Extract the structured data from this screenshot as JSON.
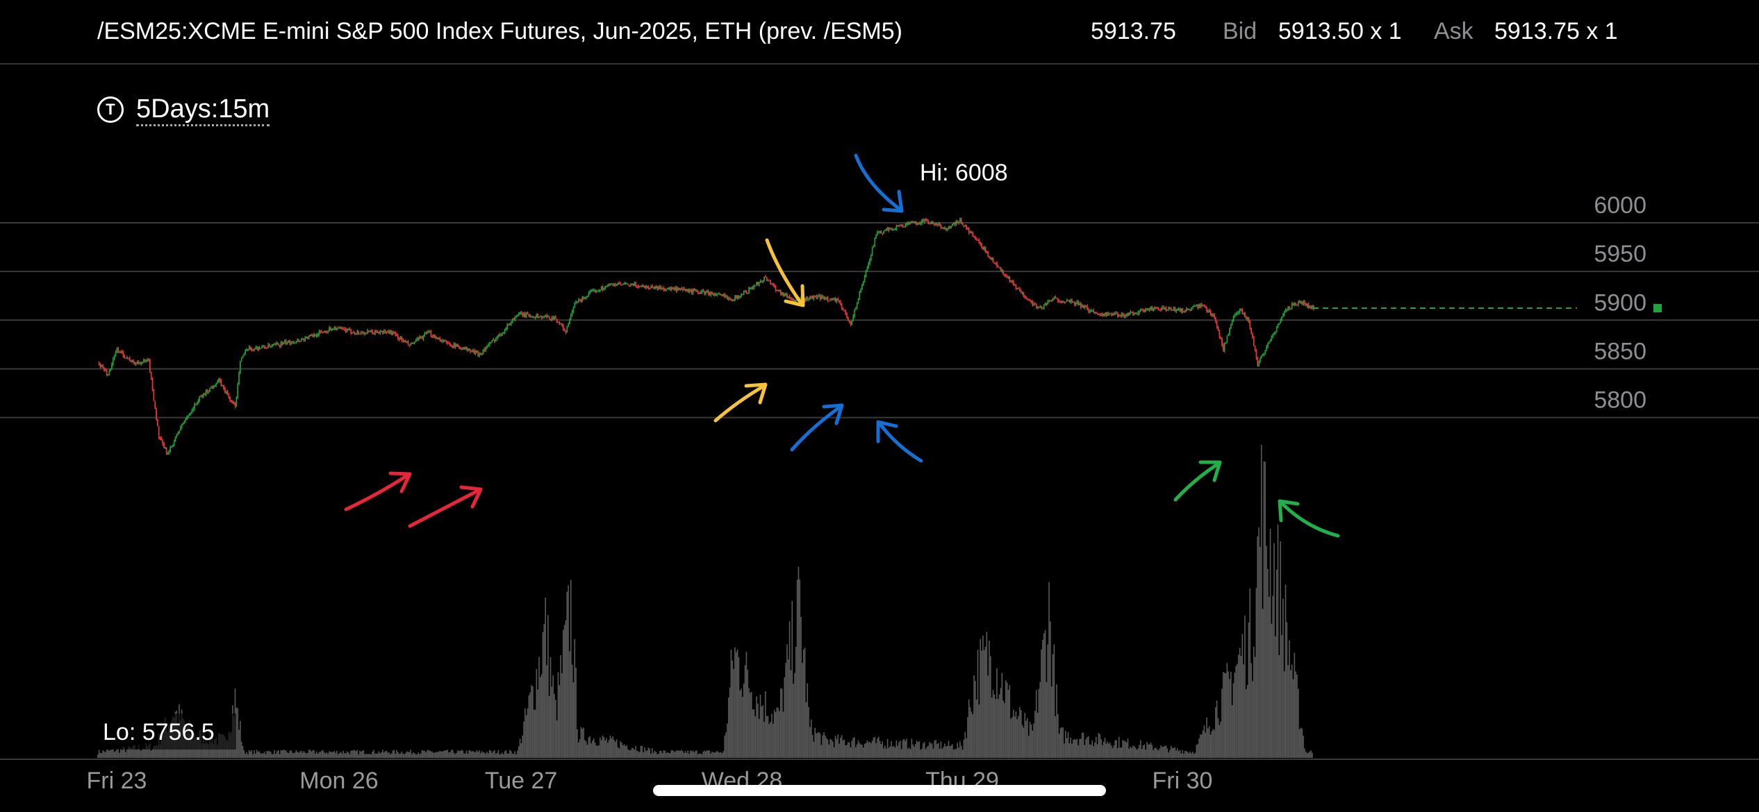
{
  "header": {
    "symbol": "/ESM25:XCME E-mini S&P 500 Index Futures, Jun-2025, ETH (prev. /ESM5)",
    "last": "5913.75",
    "bid_label": "Bid",
    "bid": "5913.50 x 1",
    "ask_label": "Ask",
    "ask": "5913.75 x 1"
  },
  "timeframe": {
    "label": "5Days:15m",
    "icon": "t-circle-icon"
  },
  "colors": {
    "up": "#1fa63a",
    "down": "#f0393b",
    "volume": "#5a5a5a",
    "grid": "#3a3a3a",
    "last_price_line": "#1fa63a"
  },
  "chart_data": {
    "type": "candlestick",
    "ylim": [
      5725,
      6030
    ],
    "yticks": [
      {
        "value": 6000,
        "label": "6000"
      },
      {
        "value": 5950,
        "label": "5950"
      },
      {
        "value": 5900,
        "label": "5900"
      },
      {
        "value": 5850,
        "label": "5850"
      },
      {
        "value": 5800,
        "label": "5800"
      }
    ],
    "xticks": [
      "Fri 23",
      "Mon 26",
      "Tue 27",
      "Wed 28",
      "Thu 29",
      "Fri 30"
    ],
    "hi_label": "Hi: 6008",
    "lo_label": "Lo: 5756.5",
    "last_price": 5913.75,
    "price_path": [
      [
        0,
        5857
      ],
      [
        8,
        5844
      ],
      [
        15,
        5870
      ],
      [
        28,
        5856
      ],
      [
        40,
        5858
      ],
      [
        48,
        5780
      ],
      [
        55,
        5762
      ],
      [
        65,
        5790
      ],
      [
        80,
        5820
      ],
      [
        95,
        5838
      ],
      [
        108,
        5810
      ],
      [
        112,
        5860
      ],
      [
        118,
        5870
      ],
      [
        135,
        5873
      ],
      [
        160,
        5880
      ],
      [
        185,
        5892
      ],
      [
        205,
        5887
      ],
      [
        230,
        5888
      ],
      [
        245,
        5874
      ],
      [
        260,
        5887
      ],
      [
        275,
        5876
      ],
      [
        290,
        5870
      ],
      [
        300,
        5865
      ],
      [
        318,
        5888
      ],
      [
        330,
        5906
      ],
      [
        345,
        5904
      ],
      [
        360,
        5902
      ],
      [
        368,
        5888
      ],
      [
        375,
        5917
      ],
      [
        390,
        5930
      ],
      [
        405,
        5937
      ],
      [
        420,
        5936
      ],
      [
        450,
        5932
      ],
      [
        480,
        5928
      ],
      [
        500,
        5922
      ],
      [
        512,
        5931
      ],
      [
        525,
        5944
      ],
      [
        535,
        5930
      ],
      [
        548,
        5920
      ],
      [
        565,
        5924
      ],
      [
        582,
        5920
      ],
      [
        592,
        5896
      ],
      [
        602,
        5940
      ],
      [
        612,
        5988
      ],
      [
        628,
        5996
      ],
      [
        650,
        6002
      ],
      [
        668,
        5994
      ],
      [
        678,
        6002
      ],
      [
        695,
        5976
      ],
      [
        712,
        5948
      ],
      [
        725,
        5929
      ],
      [
        740,
        5912
      ],
      [
        752,
        5922
      ],
      [
        770,
        5917
      ],
      [
        785,
        5907
      ],
      [
        805,
        5905
      ],
      [
        830,
        5912
      ],
      [
        855,
        5910
      ],
      [
        868,
        5915
      ],
      [
        878,
        5904
      ],
      [
        885,
        5870
      ],
      [
        892,
        5900
      ],
      [
        898,
        5910
      ],
      [
        905,
        5900
      ],
      [
        912,
        5855
      ],
      [
        922,
        5880
      ],
      [
        935,
        5912
      ],
      [
        945,
        5919
      ],
      [
        955,
        5913
      ]
    ],
    "volume": [
      [
        0,
        1
      ],
      [
        45,
        2
      ],
      [
        60,
        8
      ],
      [
        75,
        4
      ],
      [
        100,
        3
      ],
      [
        108,
        10
      ],
      [
        115,
        1
      ],
      [
        330,
        1
      ],
      [
        345,
        14
      ],
      [
        352,
        22
      ],
      [
        360,
        8
      ],
      [
        372,
        26
      ],
      [
        378,
        4
      ],
      [
        440,
        1
      ],
      [
        492,
        1
      ],
      [
        500,
        18
      ],
      [
        520,
        10
      ],
      [
        535,
        7
      ],
      [
        552,
        26
      ],
      [
        560,
        5
      ],
      [
        572,
        3
      ],
      [
        680,
        2
      ],
      [
        690,
        14
      ],
      [
        702,
        18
      ],
      [
        720,
        8
      ],
      [
        735,
        4
      ],
      [
        748,
        25
      ],
      [
        756,
        4
      ],
      [
        862,
        1
      ],
      [
        888,
        12
      ],
      [
        900,
        18
      ],
      [
        908,
        22
      ],
      [
        915,
        42
      ],
      [
        930,
        28
      ],
      [
        950,
        1
      ]
    ],
    "volume_max": 42
  },
  "annotations": [
    {
      "name": "red-arrow-1",
      "color": "#e8263a"
    },
    {
      "name": "red-arrow-2",
      "color": "#e8263a"
    },
    {
      "name": "yellow-arrow-1",
      "color": "#f6c338"
    },
    {
      "name": "yellow-arrow-2",
      "color": "#f6c338"
    },
    {
      "name": "blue-arrow-1",
      "color": "#1570d6"
    },
    {
      "name": "blue-arrow-2",
      "color": "#1570d6"
    },
    {
      "name": "blue-arrow-3",
      "color": "#1570d6"
    },
    {
      "name": "green-arrow-1",
      "color": "#1fb24a"
    },
    {
      "name": "green-arrow-2",
      "color": "#1fb24a"
    }
  ]
}
